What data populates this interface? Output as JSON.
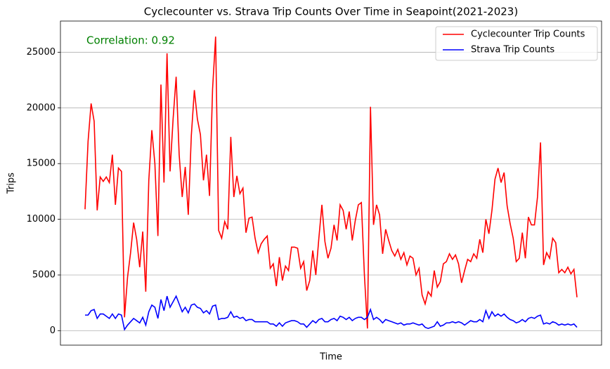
{
  "chart_data": {
    "type": "line",
    "title": "Cyclecounter vs. Strava Trip Counts Over Time in Seapoint(2021-2023)",
    "xlabel": "Time",
    "ylabel": "Trips",
    "annotation": "Correlation: 0.92",
    "annotation_color": "#008000",
    "categories": [
      null,
      null,
      null,
      null,
      null,
      null,
      null,
      null,
      null,
      null,
      null,
      null,
      null,
      null,
      null,
      null,
      null,
      null,
      null,
      null,
      null,
      null,
      null,
      null,
      null,
      null,
      null,
      null,
      null,
      null,
      null,
      null,
      null,
      null,
      null,
      null,
      null,
      null,
      null,
      null,
      null,
      null,
      null,
      null,
      null,
      null,
      null,
      null,
      null,
      null,
      null,
      null,
      null,
      null,
      null,
      null,
      null,
      null,
      null,
      null,
      null,
      null,
      null,
      null,
      null,
      null,
      null,
      null,
      null,
      null,
      null,
      null,
      null,
      null,
      null,
      null,
      null,
      null,
      null,
      null,
      null,
      null,
      null,
      null,
      null,
      null,
      null,
      null,
      null,
      null,
      null,
      null,
      null,
      null,
      null,
      null,
      null,
      null,
      null,
      null,
      null,
      null,
      null,
      null,
      null,
      null,
      null,
      null,
      null,
      null,
      null,
      null,
      null,
      null,
      null,
      null,
      null,
      null,
      null,
      null,
      null,
      null,
      null,
      null,
      null,
      null,
      null,
      null,
      null,
      null,
      null,
      null,
      null,
      null,
      null,
      null,
      null,
      null,
      null,
      null,
      null,
      null,
      null,
      null,
      null,
      null,
      null,
      null,
      null,
      null,
      null,
      null,
      null,
      null,
      null,
      null,
      null,
      null,
      null,
      null,
      null,
      null,
      null
    ],
    "series": [
      {
        "name": "Cyclecounter Trip Counts",
        "color": "#ff0000",
        "values": [
          10900,
          17000,
          20400,
          18800,
          10800,
          13800,
          13400,
          13800,
          13300,
          15800,
          11300,
          14600,
          14300,
          1200,
          4800,
          7000,
          9700,
          8200,
          5700,
          8900,
          3500,
          13500,
          18000,
          15000,
          8500,
          22100,
          13300,
          24900,
          14300,
          19000,
          22800,
          15800,
          12000,
          14700,
          10400,
          17500,
          21600,
          19000,
          17600,
          13500,
          15800,
          12100,
          21700,
          26400,
          9000,
          8300,
          9800,
          9100,
          17400,
          12000,
          13900,
          12300,
          12800,
          8800,
          10100,
          10200,
          8300,
          7000,
          7800,
          8200,
          8500,
          5600,
          6000,
          4000,
          6600,
          4500,
          5800,
          5400,
          7500,
          7500,
          7400,
          5600,
          6200,
          3600,
          4500,
          7200,
          5000,
          8300,
          11300,
          8000,
          6500,
          7400,
          9500,
          8100,
          11300,
          10800,
          9100,
          10700,
          8100,
          9900,
          11300,
          11500,
          5000,
          200,
          20100,
          9500,
          11300,
          10400,
          6900,
          9100,
          8100,
          7200,
          6700,
          7300,
          6400,
          7000,
          5900,
          6700,
          6500,
          5000,
          5600,
          3200,
          2400,
          3500,
          3100,
          5400,
          3900,
          4400,
          6000,
          6200,
          6900,
          6400,
          6800,
          6000,
          4300,
          5400,
          6400,
          6200,
          6900,
          6500,
          8200,
          7000,
          10000,
          8700,
          10800,
          13600,
          14600,
          13300,
          14200,
          11200,
          9600,
          8300,
          6200,
          6500,
          8800,
          6500,
          10200,
          9500,
          9500,
          12000,
          16900,
          5900,
          7000,
          6500,
          8300,
          7900,
          5200,
          5500,
          5200,
          5700,
          5100,
          5500,
          3000
        ]
      },
      {
        "name": "Strava Trip Counts",
        "color": "#0000ff",
        "values": [
          1400,
          1400,
          1800,
          1900,
          1100,
          1500,
          1500,
          1300,
          1100,
          1500,
          1100,
          1500,
          1400,
          100,
          500,
          800,
          1100,
          900,
          700,
          1200,
          500,
          1700,
          2300,
          2100,
          1100,
          2800,
          1800,
          3100,
          2100,
          2600,
          3100,
          2400,
          1700,
          2100,
          1600,
          2300,
          2400,
          2100,
          2000,
          1600,
          1800,
          1500,
          2200,
          2300,
          1000,
          1100,
          1100,
          1200,
          1700,
          1200,
          1300,
          1100,
          1200,
          900,
          1000,
          1000,
          800,
          800,
          800,
          800,
          800,
          600,
          600,
          400,
          700,
          400,
          700,
          800,
          900,
          900,
          800,
          600,
          600,
          300,
          600,
          900,
          700,
          1000,
          1100,
          800,
          800,
          1000,
          1100,
          900,
          1300,
          1200,
          1000,
          1200,
          900,
          1100,
          1200,
          1200,
          1000,
          1200,
          1900,
          1000,
          1200,
          1000,
          700,
          1000,
          900,
          800,
          700,
          600,
          700,
          500,
          600,
          600,
          700,
          600,
          500,
          600,
          300,
          200,
          300,
          400,
          800,
          400,
          500,
          700,
          700,
          800,
          700,
          800,
          700,
          500,
          700,
          900,
          800,
          800,
          1000,
          800,
          1800,
          1100,
          1700,
          1300,
          1500,
          1300,
          1500,
          1200,
          1000,
          900,
          700,
          800,
          1000,
          800,
          1100,
          1200,
          1100,
          1300,
          1400,
          600,
          700,
          600,
          800,
          700,
          500,
          600,
          500,
          600,
          500,
          600,
          300
        ]
      }
    ],
    "ylim": [
      -1300,
      27800
    ],
    "yticks": [
      0,
      5000,
      10000,
      15000,
      20000,
      25000
    ],
    "grid": "y",
    "legend": "upper right"
  }
}
